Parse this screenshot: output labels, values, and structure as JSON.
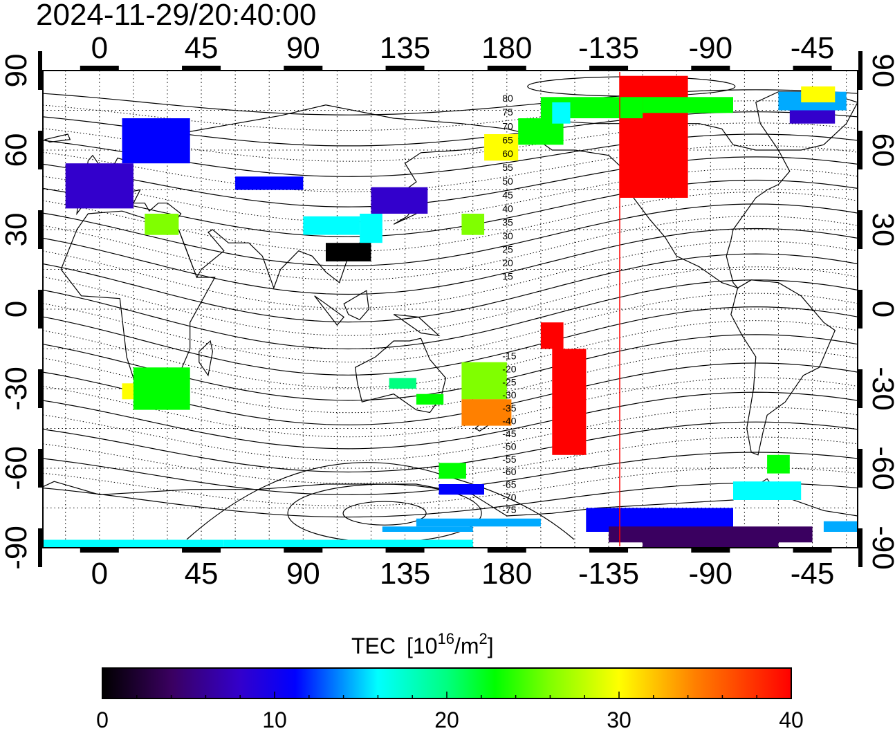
{
  "timestamp": "2024-11-29/20:40:00",
  "top_longitude_labels": [
    "0",
    "45",
    "90",
    "135",
    "180",
    "-135",
    "-90",
    "-45"
  ],
  "bottom_longitude_labels": [
    "0",
    "45",
    "90",
    "135",
    "180",
    "-135",
    "-90",
    "-45"
  ],
  "left_latitude_labels": [
    "90",
    "60",
    "30",
    "0",
    "-30",
    "-60",
    "-90"
  ],
  "right_latitude_labels": [
    "90",
    "60",
    "30",
    "0",
    "-30",
    "-60",
    "-90"
  ],
  "contour_labels": [
    "80",
    "75",
    "70",
    "65",
    "60",
    "55",
    "50",
    "45",
    "40",
    "35",
    "30",
    "25",
    "20",
    "15",
    "-15",
    "-20",
    "-25",
    "-30",
    "-35",
    "-40",
    "-45",
    "-50",
    "-55",
    "-60",
    "-65",
    "-70",
    "-75"
  ],
  "colorbar": {
    "title": "TEC",
    "unit_base": "[10",
    "unit_exp": "16",
    "unit_mid": "/m",
    "unit_exp2": "2",
    "unit_end": "]",
    "tick_labels": [
      "0",
      "10",
      "20",
      "30",
      "40"
    ],
    "min": 0,
    "max": 40
  },
  "colors": {
    "terminator_line": "#ff0000",
    "scale": [
      "#000000",
      "#3a0060",
      "#3300cc",
      "#0000ff",
      "#00aaff",
      "#00ffff",
      "#00ff80",
      "#00ff00",
      "#80ff00",
      "#ffff00",
      "#ff8000",
      "#ff0000"
    ]
  },
  "map_extent": {
    "lon_min": -25,
    "lon_max": 335,
    "lat_min": -90,
    "lat_max": 90
  }
}
